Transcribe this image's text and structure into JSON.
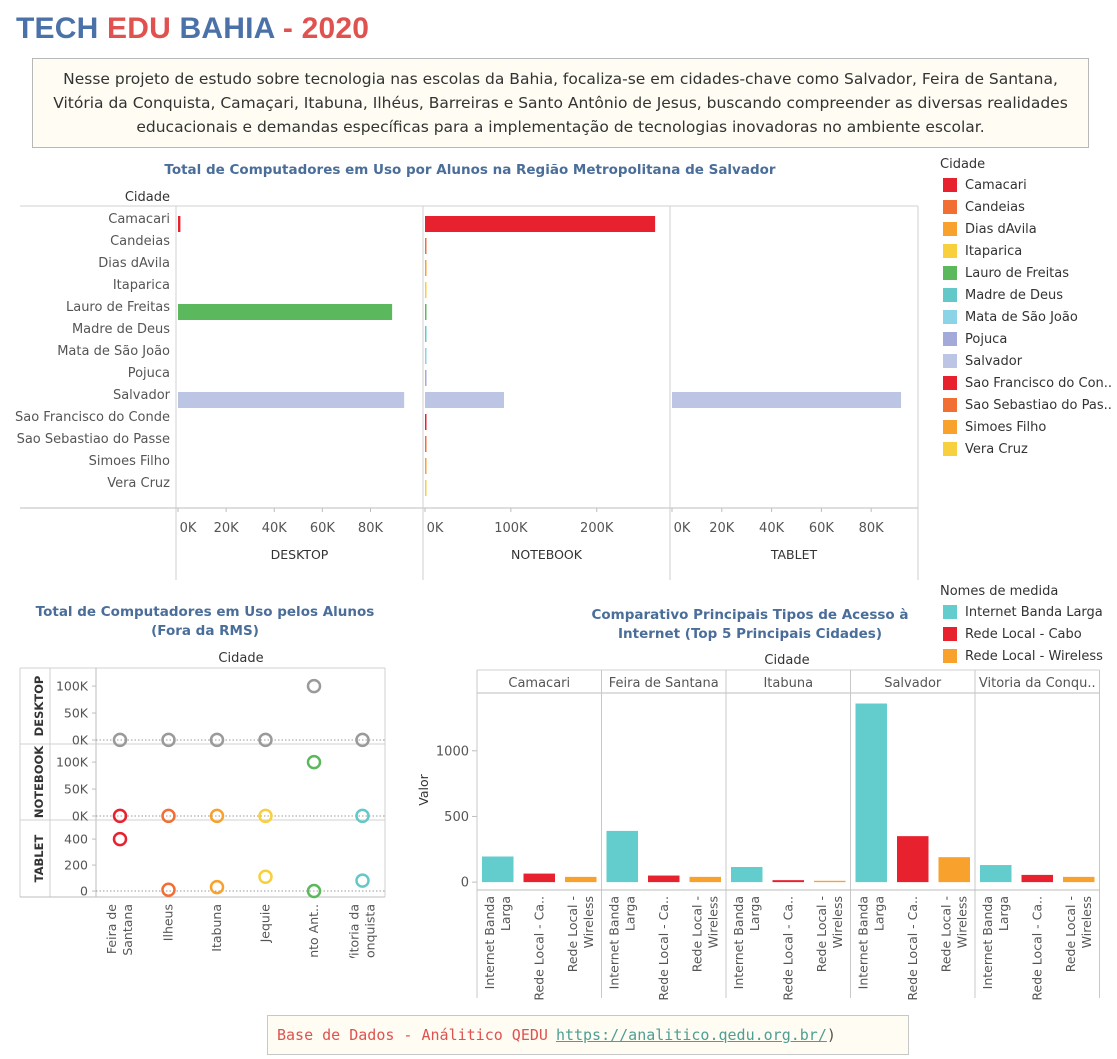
{
  "header": {
    "title_parts": [
      {
        "text": "TECH ",
        "color": "#4b72a8"
      },
      {
        "text": "EDU",
        "color": "#e0524f"
      },
      {
        "text": " BAHIA",
        "color": "#4b72a8"
      },
      {
        "text": " - 2020",
        "color": "#e0524f"
      }
    ],
    "intro": "Nesse projeto de estudo sobre tecnologia nas escolas da Bahia, focaliza-se em cidades-chave como Salvador, Feira de Santana, Vitória da Conquista, Camaçari, Itabuna, Ilhéus, Barreiras e Santo Antônio de Jesus, buscando compreender as diversas realidades educacionais e demandas específicas para a implementação de tecnologias inovadoras no ambiente escolar."
  },
  "legend_cidade": {
    "title": "Cidade",
    "items": [
      {
        "label": "Camacari",
        "color": "#e8212f"
      },
      {
        "label": "Candeias",
        "color": "#f26f34"
      },
      {
        "label": "Dias dAvila",
        "color": "#f8a12c"
      },
      {
        "label": "Itaparica",
        "color": "#f8cf3c"
      },
      {
        "label": "Lauro de Freitas",
        "color": "#5cb85c"
      },
      {
        "label": "Madre de Deus",
        "color": "#63c8c8"
      },
      {
        "label": "Mata de São João",
        "color": "#8bd3e6"
      },
      {
        "label": "Pojuca",
        "color": "#a3a9d9"
      },
      {
        "label": "Salvador",
        "color": "#bcc6e4"
      },
      {
        "label": "Sao Francisco do Con..",
        "color": "#e8212f"
      },
      {
        "label": "Sao Sebastiao do Pas..",
        "color": "#f26f34"
      },
      {
        "label": "Simoes Filho",
        "color": "#f8a12c"
      },
      {
        "label": "Vera Cruz",
        "color": "#f8cf3c"
      }
    ]
  },
  "legend_medida": {
    "title": "Nomes de medida",
    "items": [
      {
        "label": "Internet Banda Larga",
        "color": "#63cccc"
      },
      {
        "label": "Rede Local - Cabo",
        "color": "#e8212f"
      },
      {
        "label": "Rede Local - Wireless",
        "color": "#f8a12c"
      }
    ]
  },
  "footer": {
    "label": "Base de Dados - Análitico QEDU",
    "url": "https://analitico.qedu.org.br/",
    "close": ")"
  },
  "chart_data": [
    {
      "type": "bar",
      "orientation": "horizontal",
      "title": "Total de Computadores em Uso por Alunos na Região Metropolitana de Salvador",
      "row_header": "Cidade",
      "categories": [
        "Camacari",
        "Candeias",
        "Dias dAvila",
        "Itaparica",
        "Lauro de Freitas",
        "Madre de Deus",
        "Mata de São João",
        "Pojuca",
        "Salvador",
        "Sao Francisco do Conde",
        "Sao Sebastiao do Passe",
        "Simoes Filho",
        "Vera Cruz"
      ],
      "panels": [
        {
          "name": "DESKTOP",
          "xlim": [
            0,
            101000
          ],
          "ticks": [
            0,
            20000,
            40000,
            60000,
            80000
          ],
          "tick_labels": [
            "0K",
            "20K",
            "40K",
            "60K",
            "80K"
          ],
          "values": [
            1000,
            0,
            0,
            0,
            89000,
            0,
            0,
            0,
            94000,
            0,
            0,
            0,
            0
          ]
        },
        {
          "name": "NOTEBOOK",
          "xlim": [
            0,
            283000
          ],
          "ticks": [
            0,
            100000,
            200000
          ],
          "tick_labels": [
            "0K",
            "100K",
            "200K"
          ],
          "values": [
            268000,
            1200,
            1200,
            1000,
            1500,
            800,
            900,
            700,
            92000,
            1000,
            900,
            1200,
            800
          ]
        },
        {
          "name": "TABLET",
          "xlim": [
            0,
            98000
          ],
          "ticks": [
            0,
            20000,
            40000,
            60000,
            80000
          ],
          "tick_labels": [
            "0K",
            "20K",
            "40K",
            "60K",
            "80K"
          ],
          "values": [
            0,
            0,
            0,
            0,
            0,
            0,
            0,
            0,
            92000,
            0,
            0,
            0,
            0
          ]
        }
      ]
    },
    {
      "type": "scatter",
      "title": "Total de Computadores em Uso pelos Alunos (Fora da RMS)",
      "column_header": "Cidade",
      "categories": [
        "Feira de Santana",
        "Ilheus",
        "Itabuna",
        "Jequie",
        "Santo Ant..",
        "Vitoria da Conquista"
      ],
      "category_labels": [
        [
          "Feira de",
          "Santana"
        ],
        [
          "Ilheus"
        ],
        [
          "Itabuna"
        ],
        [
          "Jequie"
        ],
        [
          "Santo Ant.."
        ],
        [
          "Vitoria da",
          "Conquista"
        ]
      ],
      "rows": [
        {
          "name": "DESKTOP",
          "ylim": [
            0,
            115000
          ],
          "ticks": [
            0,
            50000,
            100000
          ],
          "tick_labels": [
            "0K",
            "50K",
            "100K"
          ],
          "values": [
            200,
            200,
            200,
            200,
            100000,
            200
          ],
          "colors": [
            "#9a9a9a",
            "#9a9a9a",
            "#9a9a9a",
            "#9a9a9a",
            "#9a9a9a",
            "#9a9a9a"
          ]
        },
        {
          "name": "NOTEBOOK",
          "ylim": [
            0,
            115000
          ],
          "ticks": [
            0,
            50000,
            100000
          ],
          "tick_labels": [
            "0K",
            "50K",
            "100K"
          ],
          "values": [
            200,
            200,
            200,
            200,
            100000,
            200
          ],
          "colors": [
            "#e8212f",
            "#f26f34",
            "#f8a12c",
            "#f8cf3c",
            "#5cb85c",
            "#63c8c8"
          ]
        },
        {
          "name": "TABLET",
          "ylim": [
            -15,
            470
          ],
          "ticks": [
            0,
            200,
            400
          ],
          "tick_labels": [
            "0",
            "200",
            "400"
          ],
          "values": [
            400,
            10,
            30,
            110,
            0,
            80
          ],
          "colors": [
            "#e8212f",
            "#f26f34",
            "#f8a12c",
            "#f8cf3c",
            "#5cb85c",
            "#63c8c8"
          ]
        }
      ]
    },
    {
      "type": "bar",
      "title": "Comparativo Principais Tipos de Acesso à Internet (Top 5 Principais Cidades)",
      "column_header": "Cidade",
      "ylabel": "Valor",
      "ylim": [
        -60,
        1440
      ],
      "ticks": [
        0,
        500,
        1000
      ],
      "tick_labels": [
        "0",
        "500",
        "1000"
      ],
      "groups": [
        "Camacari",
        "Feira de Santana",
        "Itabuna",
        "Salvador",
        "Vitoria da Conqu.."
      ],
      "measures": [
        "Internet Banda Larga",
        "Rede Local - Cabo",
        "Rede Local - Wireless"
      ],
      "measure_labels": [
        [
          "Internet Banda",
          "Larga"
        ],
        [
          "Rede Local - Ca.."
        ],
        [
          "Rede Local -",
          "Wireless"
        ]
      ],
      "measure_colors": [
        "#63cccc",
        "#e8212f",
        "#f8a12c"
      ],
      "series": [
        {
          "name": "Internet Banda Larga",
          "values": [
            195,
            390,
            115,
            1360,
            130
          ]
        },
        {
          "name": "Rede Local - Cabo",
          "values": [
            65,
            50,
            15,
            350,
            55
          ]
        },
        {
          "name": "Rede Local - Wireless",
          "values": [
            40,
            40,
            10,
            190,
            40
          ]
        }
      ]
    }
  ]
}
